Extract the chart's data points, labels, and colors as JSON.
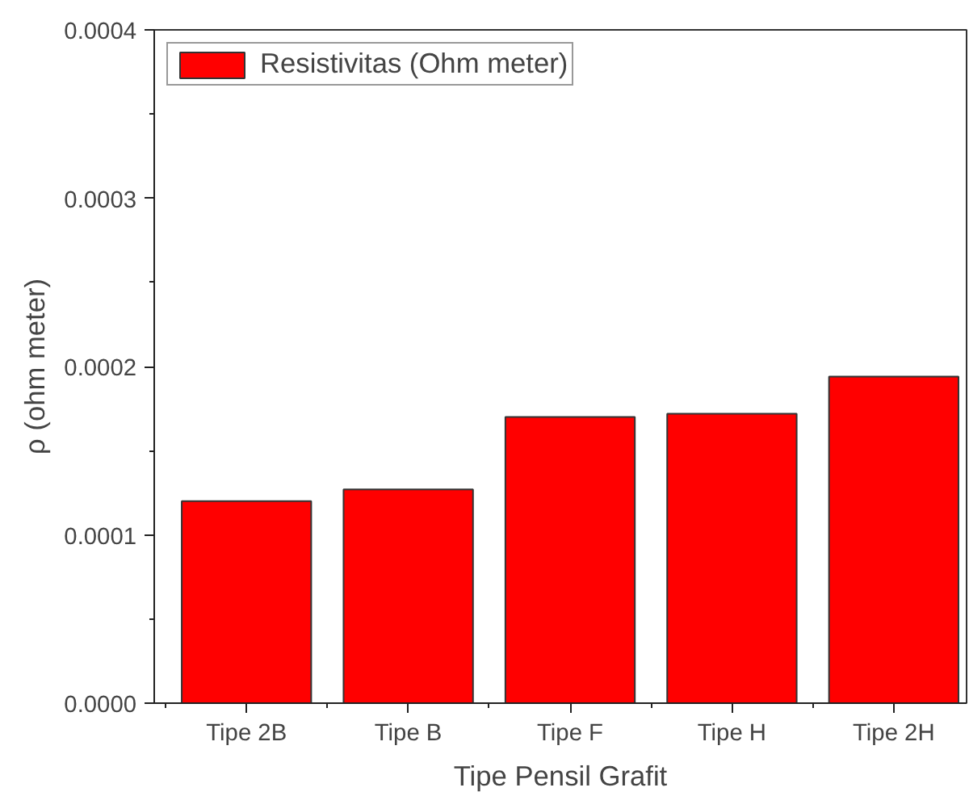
{
  "chart_data": {
    "type": "bar",
    "xlabel": "Tipe Pensil Grafit",
    "ylabel": "ρ (ohm meter)",
    "categories": [
      "Tipe 2B",
      "Tipe B",
      "Tipe F",
      "Tipe H",
      "Tipe 2H"
    ],
    "series": [
      {
        "name": "Resistivitas (Ohm meter)",
        "color": "#ff0000",
        "values": [
          0.00012,
          0.000127,
          0.00017,
          0.000172,
          0.000194
        ]
      }
    ],
    "ylim": [
      0,
      0.0004
    ],
    "yticks": [
      {
        "value": 0,
        "label": "0.0000"
      },
      0.0001,
      0.0002,
      0.0003,
      0.0004
    ],
    "grid": false,
    "legend": "top left"
  }
}
